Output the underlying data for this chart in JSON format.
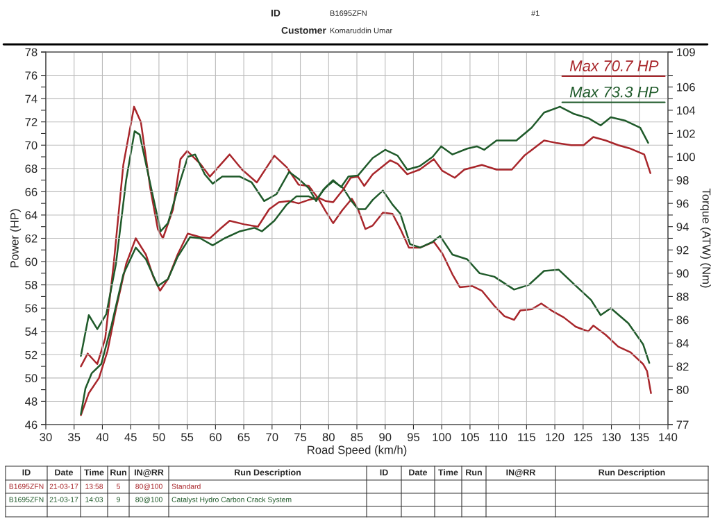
{
  "chart_data": {
    "type": "line",
    "xlabel": "Road Speed (km/h)",
    "ylabel": "Power (HP)",
    "y2label": "Torque (ATW) (Nm)",
    "xlim": [
      30,
      140
    ],
    "xticks": [
      30,
      35,
      40,
      45,
      50,
      55,
      60,
      65,
      70,
      75,
      80,
      85,
      90,
      95,
      100,
      105,
      110,
      115,
      120,
      125,
      130,
      135,
      140
    ],
    "ylim": [
      46,
      78
    ],
    "yticks": [
      46,
      48,
      50,
      52,
      54,
      56,
      58,
      60,
      62,
      64,
      66,
      68,
      70,
      72,
      74,
      76,
      78
    ],
    "y2lim": [
      77,
      109
    ],
    "y2ticks": [
      77,
      80,
      82,
      84,
      86,
      88,
      90,
      92,
      94,
      96,
      98,
      100,
      102,
      104,
      106,
      109
    ],
    "grid": true,
    "annotations": [
      "ID",
      "B1695ZFN",
      "Customer",
      "Komaruddin Umar",
      "#1",
      "Max 70.7 HP",
      "Max 73.3 HP",
      "ID",
      "Date",
      "Time",
      "Run",
      "IN@RR",
      "Run Description",
      "ID",
      "Date",
      "Time",
      "Run",
      "IN@RR",
      "Run Description",
      "B1695ZFN",
      "21-03-17",
      "13:58",
      "5",
      "80@100",
      "Standard",
      "B1695ZFN",
      "21-03-17",
      "14:03",
      "9",
      "80@100",
      "Catalyst Hydro Carbon Crack System"
    ],
    "series": [
      {
        "color": "#a8262b",
        "x": [
          36.2,
          37.6,
          39.4,
          40.9,
          42.4,
          44.2,
          45.9,
          47.7,
          49.0,
          50.2,
          51.6,
          53.3,
          55.1,
          57.3,
          59.0,
          60.8,
          62.5,
          65.1,
          67.5,
          69.5,
          71.2,
          73.0,
          74.7,
          76.5,
          78.2,
          79.5,
          80.8,
          82.6,
          83.9,
          85.2,
          86.3,
          87.8,
          90.9,
          92.2,
          93.9,
          96.1,
          98.6,
          100.1,
          102.3,
          104.0,
          107.1,
          109.7,
          112.4,
          114.6,
          118.1,
          120.2,
          122.9,
          125.1,
          126.8,
          129.0,
          131.2,
          133.4,
          135.8,
          136.9
        ],
        "values": [
          46.8,
          48.7,
          50.0,
          52.3,
          55.9,
          59.8,
          62.0,
          60.6,
          58.7,
          57.5,
          58.5,
          60.6,
          62.4,
          62.1,
          62.0,
          62.8,
          63.5,
          63.2,
          63.0,
          64.5,
          65.1,
          65.2,
          65.0,
          65.3,
          65.5,
          65.2,
          65.1,
          66.2,
          67.2,
          67.3,
          66.5,
          67.5,
          68.7,
          68.4,
          67.5,
          67.9,
          68.8,
          67.8,
          67.2,
          67.9,
          68.3,
          67.9,
          67.9,
          69.1,
          70.4,
          70.2,
          70.0,
          70.0,
          70.7,
          70.4,
          70.0,
          69.7,
          69.2,
          67.6
        ]
      },
      {
        "color": "#1f5a2a",
        "x": [
          36.2,
          37.0,
          38.1,
          39.8,
          41.6,
          43.7,
          45.9,
          47.7,
          49.8,
          51.6,
          53.3,
          55.5,
          57.3,
          59.5,
          61.6,
          64.3,
          66.9,
          68.2,
          70.4,
          72.6,
          74.3,
          76.5,
          77.8,
          79.5,
          80.8,
          82.2,
          83.5,
          85.2,
          87.8,
          90.0,
          92.2,
          93.9,
          96.1,
          98.4,
          99.9,
          101.9,
          104.5,
          106.2,
          107.5,
          109.7,
          113.2,
          115.9,
          118.1,
          120.9,
          123.3,
          126.0,
          128.1,
          129.9,
          132.5,
          135.1,
          136.5
        ],
        "values": [
          46.9,
          49.1,
          50.4,
          51.2,
          54.5,
          58.9,
          61.2,
          60.2,
          57.9,
          58.5,
          60.4,
          62.1,
          62.0,
          61.4,
          62.0,
          62.6,
          62.9,
          62.6,
          63.5,
          64.9,
          65.6,
          65.6,
          65.3,
          66.4,
          67.0,
          66.4,
          67.3,
          67.4,
          68.9,
          69.6,
          69.1,
          67.9,
          68.2,
          69.0,
          69.9,
          69.2,
          69.7,
          69.9,
          69.6,
          70.4,
          70.4,
          71.5,
          72.8,
          73.3,
          72.7,
          72.3,
          71.7,
          72.4,
          72.1,
          71.5,
          70.2
        ]
      },
      {
        "color": "#a8262b",
        "axis": "y2",
        "x": [
          36.2,
          37.4,
          39.1,
          40.5,
          42.0,
          43.7,
          45.6,
          46.8,
          48.5,
          49.8,
          50.7,
          52.5,
          53.8,
          55.0,
          57.3,
          59.0,
          62.5,
          64.7,
          67.3,
          70.4,
          72.6,
          74.7,
          76.5,
          78.2,
          79.5,
          80.8,
          82.4,
          84.1,
          85.2,
          86.5,
          87.8,
          89.6,
          91.3,
          92.7,
          94.2,
          96.2,
          98.6,
          100.1,
          101.9,
          103.2,
          105.4,
          107.1,
          109.3,
          111.1,
          112.8,
          113.9,
          115.9,
          117.6,
          119.4,
          121.6,
          123.7,
          125.9,
          126.8,
          129.0,
          131.2,
          133.4,
          135.6,
          136.3,
          137.0
        ],
        "values": [
          82.0,
          83.1,
          82.2,
          84.4,
          90.8,
          99.3,
          104.3,
          103.0,
          97.2,
          93.8,
          93.0,
          95.5,
          99.8,
          100.5,
          99.4,
          98.3,
          100.2,
          98.9,
          97.8,
          100.1,
          99.1,
          97.6,
          97.5,
          96.4,
          95.3,
          94.3,
          95.4,
          96.4,
          95.5,
          93.8,
          94.1,
          95.2,
          95.1,
          93.8,
          92.2,
          92.2,
          92.7,
          91.7,
          89.9,
          88.8,
          88.9,
          88.5,
          87.2,
          86.3,
          86.0,
          86.8,
          86.9,
          87.4,
          86.8,
          86.2,
          85.4,
          85.0,
          85.5,
          84.7,
          83.7,
          83.2,
          82.2,
          81.6,
          79.7
        ]
      },
      {
        "color": "#1f5a2a",
        "axis": "y2",
        "x": [
          36.2,
          37.6,
          39.1,
          40.7,
          42.4,
          44.2,
          45.7,
          46.6,
          48.5,
          50.3,
          51.6,
          53.3,
          55.1,
          56.4,
          58.1,
          59.5,
          61.2,
          64.3,
          66.4,
          68.6,
          70.8,
          73.0,
          74.7,
          76.5,
          77.8,
          79.1,
          80.8,
          82.6,
          83.9,
          85.2,
          86.5,
          87.8,
          89.6,
          91.3,
          92.7,
          94.4,
          96.2,
          98.4,
          99.7,
          101.9,
          104.5,
          106.7,
          109.3,
          112.8,
          115.4,
          118.1,
          120.7,
          123.3,
          126.4,
          128.1,
          129.9,
          133.0,
          135.6,
          136.7
        ],
        "values": [
          82.9,
          86.4,
          85.2,
          86.5,
          90.8,
          98.0,
          102.2,
          101.9,
          97.6,
          93.6,
          94.3,
          97.2,
          100.0,
          100.2,
          98.5,
          97.7,
          98.3,
          98.3,
          97.8,
          96.2,
          96.8,
          98.7,
          98.1,
          97.3,
          96.2,
          97.2,
          97.9,
          97.3,
          96.3,
          95.5,
          95.5,
          96.3,
          97.1,
          95.9,
          95.1,
          92.5,
          92.2,
          92.7,
          93.2,
          91.6,
          91.2,
          90.0,
          89.7,
          88.6,
          89.0,
          90.2,
          90.3,
          89.1,
          87.7,
          86.4,
          87.0,
          85.7,
          83.9,
          82.3
        ]
      }
    ]
  }
}
